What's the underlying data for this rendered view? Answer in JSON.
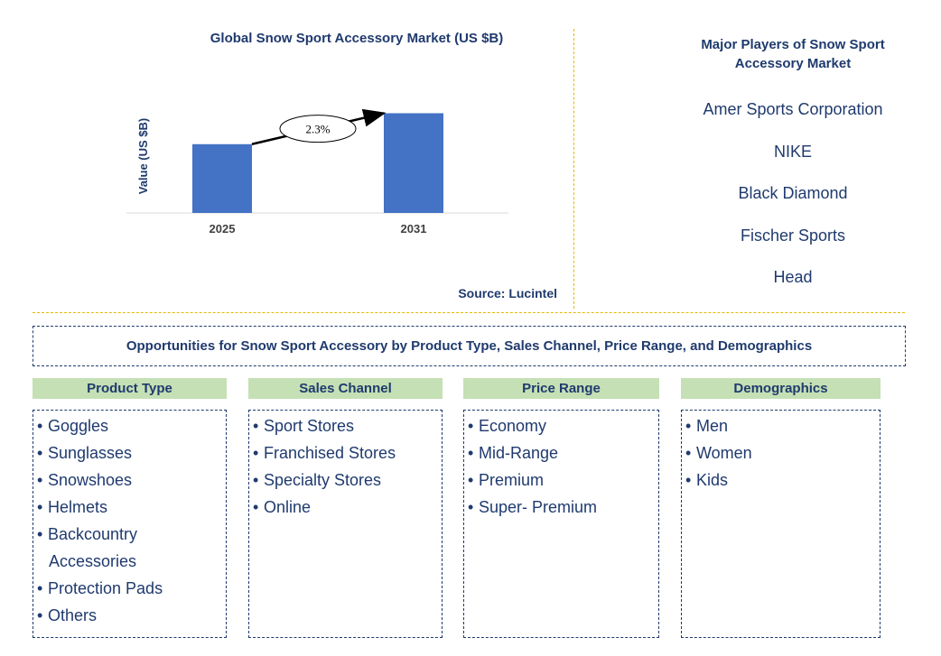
{
  "chart_data": {
    "type": "bar",
    "title": "Global Snow Sport Accessory Market (US $B)",
    "ylabel": "Value (US $B)",
    "categories": [
      "2025",
      "2031"
    ],
    "values": [
      1.0,
      1.45
    ],
    "annotation": "2.3%",
    "bar_color": "#4472c4",
    "source": "Source: Lucintel",
    "grid": false,
    "legend": "none"
  },
  "players": {
    "title": "Major Players of Snow Sport Accessory Market",
    "items": [
      "Amer Sports Corporation",
      "NIKE",
      "Black Diamond",
      "Fischer Sports",
      "Head"
    ]
  },
  "opportunities": {
    "title": "Opportunities for Snow Sport Accessory by Product Type, Sales Channel, Price Range, and Demographics",
    "columns": [
      {
        "header": "Product Type",
        "items": [
          "Goggles",
          "Sunglasses",
          "Snowshoes",
          "Helmets",
          "Backcountry Accessories",
          "Protection Pads",
          "Others"
        ]
      },
      {
        "header": "Sales Channel",
        "items": [
          "Sport Stores",
          "Franchised Stores",
          "Specialty Stores",
          "Online"
        ]
      },
      {
        "header": "Price Range",
        "items": [
          "Economy",
          "Mid-Range",
          "Premium",
          "Super- Premium"
        ]
      },
      {
        "header": "Demographics",
        "items": [
          "Men",
          "Women",
          "Kids"
        ]
      }
    ]
  },
  "colors": {
    "accent": "#1f3a6e",
    "header_fill": "#c5e0b4",
    "divider": "#e6b800"
  }
}
